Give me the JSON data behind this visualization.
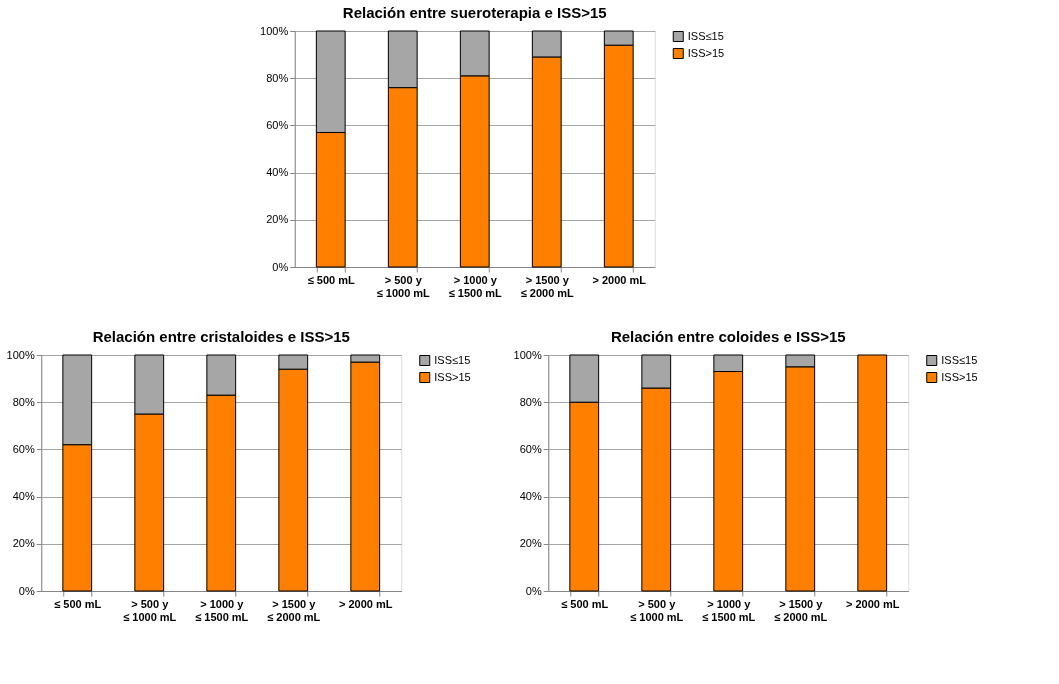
{
  "chart_data": [
    {
      "type": "bar",
      "title": "Relación entre sueroterapia e ISS>15",
      "categories": [
        "≤ 500 mL",
        "> 500 y\n≤ 1000 mL",
        "> 1000 y\n≤ 1500 mL",
        "> 1500 y\n≤ 2000 mL",
        "> 2000 mL"
      ],
      "stacked": true,
      "ylim": [
        0,
        100
      ],
      "yticks": [
        {
          "value": 0,
          "label": "0%"
        },
        {
          "value": 20,
          "label": "20%"
        },
        {
          "value": 40,
          "label": "40%"
        },
        {
          "value": 60,
          "label": "60%"
        },
        {
          "value": 80,
          "label": "80%"
        },
        {
          "value": 100,
          "label": "100%"
        }
      ],
      "grid": "y",
      "legend": "right",
      "series": [
        {
          "name": "ISS>15",
          "color": "#ff8000",
          "values": [
            57,
            76,
            81,
            89,
            94
          ]
        },
        {
          "name": "ISS≤15",
          "color": "#a6a6a6",
          "values": [
            43,
            24,
            19,
            11,
            6
          ]
        }
      ]
    },
    {
      "type": "bar",
      "title": "Relación entre cristaloides e ISS>15",
      "categories": [
        "≤ 500 mL",
        "> 500 y\n≤ 1000 mL",
        "> 1000 y\n≤ 1500 mL",
        "> 1500 y\n≤ 2000 mL",
        "> 2000 mL"
      ],
      "stacked": true,
      "ylim": [
        0,
        100
      ],
      "yticks": [
        {
          "value": 0,
          "label": "0%"
        },
        {
          "value": 20,
          "label": "20%"
        },
        {
          "value": 40,
          "label": "40%"
        },
        {
          "value": 60,
          "label": "60%"
        },
        {
          "value": 80,
          "label": "80%"
        },
        {
          "value": 100,
          "label": "100%"
        }
      ],
      "grid": "y",
      "legend": "right",
      "series": [
        {
          "name": "ISS>15",
          "color": "#ff8000",
          "values": [
            62,
            75,
            83,
            94,
            97
          ]
        },
        {
          "name": "ISS≤15",
          "color": "#a6a6a6",
          "values": [
            38,
            25,
            17,
            6,
            3
          ]
        }
      ]
    },
    {
      "type": "bar",
      "title": "Relación entre coloides e ISS>15",
      "categories": [
        "≤ 500 mL",
        "> 500 y\n≤ 1000 mL",
        "> 1000 y\n≤ 1500 mL",
        "> 1500 y\n≤ 2000 mL",
        "> 2000 mL"
      ],
      "stacked": true,
      "ylim": [
        0,
        100
      ],
      "yticks": [
        {
          "value": 0,
          "label": "0%"
        },
        {
          "value": 20,
          "label": "20%"
        },
        {
          "value": 40,
          "label": "40%"
        },
        {
          "value": 60,
          "label": "60%"
        },
        {
          "value": 80,
          "label": "80%"
        },
        {
          "value": 100,
          "label": "100%"
        }
      ],
      "grid": "y",
      "legend": "right",
      "series": [
        {
          "name": "ISS>15",
          "color": "#ff8000",
          "values": [
            80,
            86,
            93,
            95,
            100
          ]
        },
        {
          "name": "ISS≤15",
          "color": "#a6a6a6",
          "values": [
            20,
            14,
            7,
            5,
            0
          ]
        }
      ]
    }
  ]
}
